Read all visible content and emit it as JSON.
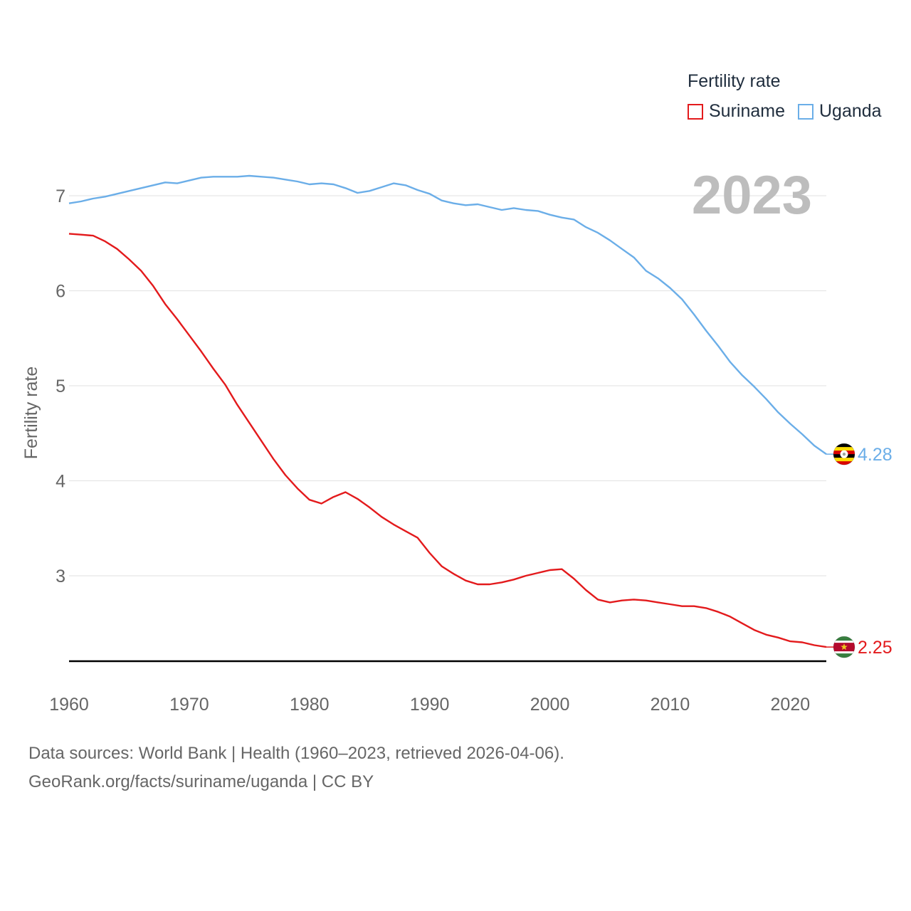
{
  "legend": {
    "title": "Fertility rate",
    "items": [
      {
        "label": "Suriname",
        "color": "#e31a1c"
      },
      {
        "label": "Uganda",
        "color": "#6baee8"
      }
    ]
  },
  "footer": {
    "sources": "Data sources: World Bank | Health (1960–2023, retrieved 2026-04-06).",
    "attribution": "GeoRank.org/facts/suriname/uganda | CC BY"
  },
  "chart_data": {
    "type": "line",
    "title": "Fertility rate",
    "year_label": "2023",
    "xlabel": "",
    "ylabel": "Fertility rate",
    "xlim": [
      1960,
      2023
    ],
    "ylim": [
      2.1,
      7.2
    ],
    "x_ticks": [
      "1960",
      "1970",
      "1980",
      "1990",
      "2000",
      "2010",
      "2020"
    ],
    "y_ticks": [
      "3",
      "4",
      "5",
      "6",
      "7"
    ],
    "grid": true,
    "legend_position": "top-right",
    "x": [
      1960,
      1961,
      1962,
      1963,
      1964,
      1965,
      1966,
      1967,
      1968,
      1969,
      1970,
      1971,
      1972,
      1973,
      1974,
      1975,
      1976,
      1977,
      1978,
      1979,
      1980,
      1981,
      1982,
      1983,
      1984,
      1985,
      1986,
      1987,
      1988,
      1989,
      1990,
      1991,
      1992,
      1993,
      1994,
      1995,
      1996,
      1997,
      1998,
      1999,
      2000,
      2001,
      2002,
      2003,
      2004,
      2005,
      2006,
      2007,
      2008,
      2009,
      2010,
      2011,
      2012,
      2013,
      2014,
      2015,
      2016,
      2017,
      2018,
      2019,
      2020,
      2021,
      2022,
      2023
    ],
    "series": [
      {
        "name": "Suriname",
        "color": "#e31a1c",
        "end_label": "2.25",
        "flag": "suriname-flag",
        "values": [
          6.6,
          6.59,
          6.58,
          6.52,
          6.44,
          6.33,
          6.21,
          6.05,
          5.86,
          5.7,
          5.53,
          5.36,
          5.18,
          5.01,
          4.8,
          4.61,
          4.42,
          4.23,
          4.06,
          3.92,
          3.8,
          3.76,
          3.83,
          3.88,
          3.81,
          3.72,
          3.62,
          3.54,
          3.47,
          3.4,
          3.24,
          3.1,
          3.02,
          2.95,
          2.91,
          2.91,
          2.93,
          2.96,
          3.0,
          3.03,
          3.06,
          3.07,
          2.97,
          2.85,
          2.75,
          2.72,
          2.74,
          2.75,
          2.74,
          2.72,
          2.7,
          2.68,
          2.68,
          2.66,
          2.62,
          2.57,
          2.5,
          2.43,
          2.38,
          2.35,
          2.31,
          2.3,
          2.27,
          2.25
        ]
      },
      {
        "name": "Uganda",
        "color": "#6baee8",
        "end_label": "4.28",
        "flag": "uganda-flag",
        "values": [
          6.92,
          6.94,
          6.97,
          6.99,
          7.02,
          7.05,
          7.08,
          7.11,
          7.14,
          7.13,
          7.16,
          7.19,
          7.2,
          7.2,
          7.2,
          7.21,
          7.2,
          7.19,
          7.17,
          7.15,
          7.12,
          7.13,
          7.12,
          7.08,
          7.03,
          7.05,
          7.09,
          7.13,
          7.11,
          7.06,
          7.02,
          6.95,
          6.92,
          6.9,
          6.91,
          6.88,
          6.85,
          6.87,
          6.85,
          6.84,
          6.8,
          6.77,
          6.75,
          6.67,
          6.61,
          6.53,
          6.44,
          6.35,
          6.21,
          6.13,
          6.03,
          5.91,
          5.75,
          5.58,
          5.42,
          5.25,
          5.11,
          4.99,
          4.86,
          4.72,
          4.6,
          4.49,
          4.37,
          4.28
        ]
      }
    ]
  }
}
